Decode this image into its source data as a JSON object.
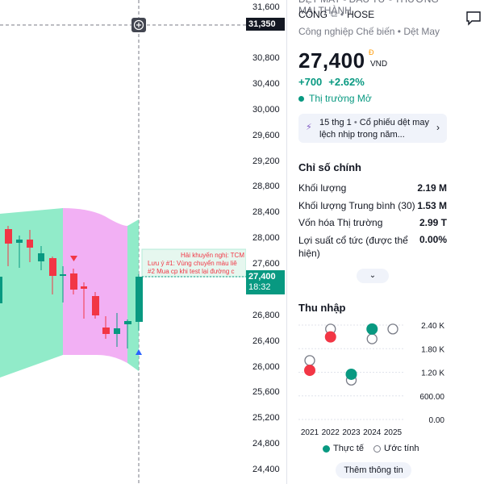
{
  "price_axis": {
    "ticks": [
      "31,600",
      "30,800",
      "30,400",
      "30,000",
      "29,600",
      "29,200",
      "28,800",
      "28,400",
      "28,000",
      "27,600",
      "26,800",
      "26,400",
      "26,000",
      "25,600",
      "25,200",
      "24,800",
      "24,400"
    ],
    "crosshair_price": "31,350",
    "last_price": "27,400",
    "countdown": "18:32"
  },
  "chart": {
    "annotation_line1": "Hải khuyến nghị: TCM",
    "annotation_line2": "Lưu ý #1: Vùng chuyển màu liê",
    "annotation_line3": "#2 Mua cp khi test lại đường c",
    "colors": {
      "up": "#089981",
      "down": "#f23645",
      "band_green": "#7ee8c0",
      "band_pink": "#f1a7f3"
    }
  },
  "company": {
    "name_top": "DỆT MAY - ĐẦU TƯ - THƯƠNG MẠI THÀNH",
    "name_line2": "CÔNG",
    "exchange": "HOSE",
    "sector": "Công nghiệp Chế biến",
    "industry": "Dệt May"
  },
  "quote": {
    "price": "27,400",
    "currency_symbol": "Đ",
    "currency": "VND",
    "change": "+700",
    "change_pct": "+2.62%",
    "market_status": "Thị trường Mở"
  },
  "news": {
    "date": "15 thg 1",
    "headline": "Cổ phiếu dệt may lệch nhịp trong năm..."
  },
  "key_stats": {
    "title": "Chỉ số chính",
    "items": [
      {
        "label": "Khối lượng",
        "value": "2.19 M"
      },
      {
        "label": "Khối lượng Trung bình (30)",
        "value": "1.53 M"
      },
      {
        "label": "Vốn hóa Thị trường",
        "value": "2.99 T"
      },
      {
        "label": "Lợi suất cổ tức (được thể hiện)",
        "value": "0.00%"
      }
    ]
  },
  "earnings": {
    "title": "Thu nhập",
    "legend_actual": "Thực tế",
    "legend_estimate": "Ước tính",
    "more_button": "Thêm thông tin"
  },
  "chart_data": {
    "type": "scatter",
    "categories": [
      "2021",
      "2022",
      "2023",
      "2024",
      "2025"
    ],
    "y_ticks": [
      "2.40 K",
      "1.80 K",
      "1.20 K",
      "600.00",
      "0.00"
    ],
    "ylim": [
      0,
      2400
    ],
    "series": [
      {
        "name": "Thực tế",
        "color": "#f23645",
        "values": [
          1250,
          2100,
          null,
          null,
          null
        ]
      },
      {
        "name": "Thực tế",
        "color": "#089981",
        "values": [
          null,
          null,
          1150,
          2300,
          null
        ]
      },
      {
        "name": "Ước tính",
        "values": [
          1500,
          2300,
          1000,
          2050,
          2300
        ]
      }
    ]
  }
}
